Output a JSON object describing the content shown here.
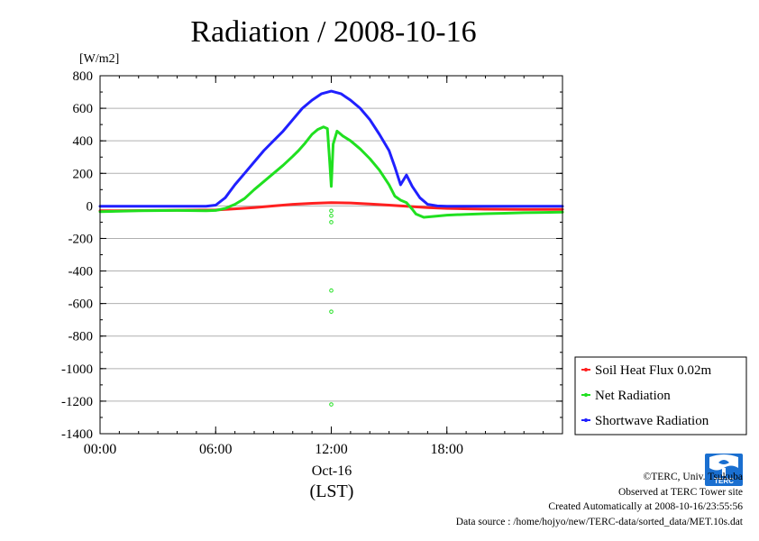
{
  "chart_data": {
    "type": "line",
    "title": "Radiation / 2008-10-16",
    "ylabel": "[W/m2]",
    "xlabel": "(LST)",
    "date_label": "Oct-16",
    "ylim": [
      -1400,
      800
    ],
    "xlim_hours": [
      0,
      24
    ],
    "y_ticks": [
      800,
      600,
      400,
      200,
      0,
      -200,
      -400,
      -600,
      -800,
      -1000,
      -1200,
      -1400
    ],
    "x_ticks": [
      {
        "hour": 0,
        "label": "00:00"
      },
      {
        "hour": 6,
        "label": "06:00"
      },
      {
        "hour": 12,
        "label": "12:00"
      },
      {
        "hour": 18,
        "label": "18:00"
      }
    ],
    "grid": true,
    "legend_position": "lower-right outside",
    "series": [
      {
        "name": "Soil Heat Flux 0.02m",
        "color": "#ff2020",
        "points": [
          [
            0,
            -30
          ],
          [
            3,
            -28
          ],
          [
            6,
            -25
          ],
          [
            6.5,
            -22
          ],
          [
            7,
            -18
          ],
          [
            8,
            -10
          ],
          [
            9,
            0
          ],
          [
            10,
            10
          ],
          [
            11,
            16
          ],
          [
            12,
            20
          ],
          [
            13,
            18
          ],
          [
            14,
            12
          ],
          [
            15,
            5
          ],
          [
            16,
            -3
          ],
          [
            17,
            -10
          ],
          [
            18,
            -15
          ],
          [
            20,
            -20
          ],
          [
            22,
            -22
          ],
          [
            24,
            -22
          ]
        ]
      },
      {
        "name": "Net Radiation",
        "color": "#20e020",
        "points": [
          [
            0,
            -35
          ],
          [
            2,
            -30
          ],
          [
            4,
            -28
          ],
          [
            5.5,
            -30
          ],
          [
            6,
            -28
          ],
          [
            6.5,
            -15
          ],
          [
            7,
            10
          ],
          [
            7.5,
            45
          ],
          [
            8,
            100
          ],
          [
            8.5,
            150
          ],
          [
            9,
            200
          ],
          [
            9.5,
            250
          ],
          [
            10,
            305
          ],
          [
            10.3,
            340
          ],
          [
            10.6,
            380
          ],
          [
            11,
            440
          ],
          [
            11.3,
            470
          ],
          [
            11.6,
            485
          ],
          [
            11.8,
            475
          ],
          [
            11.9,
            300
          ],
          [
            12,
            120
          ],
          [
            12.1,
            380
          ],
          [
            12.3,
            460
          ],
          [
            12.6,
            430
          ],
          [
            13,
            400
          ],
          [
            13.5,
            350
          ],
          [
            14,
            290
          ],
          [
            14.5,
            220
          ],
          [
            15,
            130
          ],
          [
            15.3,
            60
          ],
          [
            15.6,
            35
          ],
          [
            15.9,
            20
          ],
          [
            16.2,
            -20
          ],
          [
            16.4,
            -50
          ],
          [
            16.8,
            -70
          ],
          [
            17.5,
            -62
          ],
          [
            18,
            -57
          ],
          [
            19,
            -52
          ],
          [
            20,
            -48
          ],
          [
            21,
            -45
          ],
          [
            22,
            -42
          ],
          [
            23,
            -40
          ],
          [
            24,
            -38
          ]
        ]
      },
      {
        "name": "Shortwave Radiation",
        "color": "#2020ff",
        "points": [
          [
            0,
            -2
          ],
          [
            3,
            -2
          ],
          [
            5.5,
            -2
          ],
          [
            6,
            5
          ],
          [
            6.5,
            50
          ],
          [
            7,
            130
          ],
          [
            7.5,
            200
          ],
          [
            8,
            270
          ],
          [
            8.5,
            340
          ],
          [
            9,
            400
          ],
          [
            9.5,
            460
          ],
          [
            10,
            530
          ],
          [
            10.5,
            600
          ],
          [
            11,
            650
          ],
          [
            11.5,
            690
          ],
          [
            12,
            705
          ],
          [
            12.5,
            690
          ],
          [
            13,
            650
          ],
          [
            13.5,
            600
          ],
          [
            14,
            530
          ],
          [
            14.5,
            440
          ],
          [
            15,
            340
          ],
          [
            15.3,
            240
          ],
          [
            15.6,
            130
          ],
          [
            15.9,
            190
          ],
          [
            16.2,
            120
          ],
          [
            16.6,
            50
          ],
          [
            17,
            10
          ],
          [
            17.5,
            0
          ],
          [
            18,
            -2
          ],
          [
            24,
            -2
          ]
        ]
      },
      {
        "name": "Net Radiation spikes",
        "color": "#20e020",
        "markers_only": true,
        "points": [
          [
            12,
            -30
          ],
          [
            12,
            -60
          ],
          [
            12,
            -100
          ],
          [
            12,
            -520
          ],
          [
            12,
            -650
          ],
          [
            12,
            -1220
          ]
        ]
      }
    ]
  },
  "logo": {
    "name": "TERC logo",
    "text": "TERC",
    "color": "#1a6fd0"
  },
  "credits": {
    "copyright": "©TERC, Univ. Tsukuba",
    "observed": "Observed at TERC Tower site",
    "created": "Created Automatically at 2008-10-16/23:55:56",
    "source": "Data source : /home/hojyo/new/TERC-data/sorted_data/MET.10s.dat"
  }
}
